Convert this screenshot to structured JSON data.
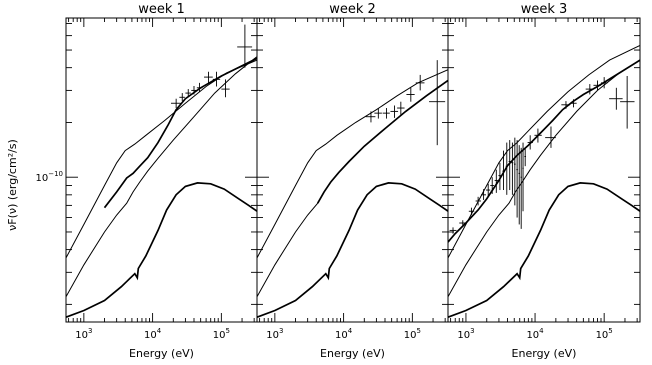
{
  "chart_data": [
    {
      "type": "scatter",
      "title": "week 1",
      "xlabel": "Energy (eV)",
      "ylabel": "νF(ν) (erg/cm²/s)",
      "x_scale": "log",
      "y_scale": "log",
      "xlim": [
        550,
        330000
      ],
      "ylim": [
        1.6e-11,
        7.5e-10
      ],
      "x_tick_labels": [
        {
          "value": 1000,
          "mant": "10",
          "exp": "3"
        },
        {
          "value": 10000,
          "mant": "10",
          "exp": "4"
        },
        {
          "value": 100000,
          "mant": "10",
          "exp": "5"
        }
      ],
      "y_tick_labels": [
        {
          "value": 1e-10,
          "mant": "10",
          "exp": "−10"
        }
      ],
      "grid": false,
      "points": [
        {
          "x": 22000,
          "y": 2.55e-10,
          "xerr": [
            18500,
            25500
          ],
          "yerr": [
            2.4e-10,
            2.7e-10
          ]
        },
        {
          "x": 27000,
          "y": 2.75e-10,
          "xerr": [
            24500,
            29500
          ],
          "yerr": [
            2.62e-10,
            2.9e-10
          ]
        },
        {
          "x": 33000,
          "y": 2.9e-10,
          "xerr": [
            30000,
            36000
          ],
          "yerr": [
            2.77e-10,
            3.05e-10
          ]
        },
        {
          "x": 40000,
          "y": 3e-10,
          "xerr": [
            36500,
            44000
          ],
          "yerr": [
            2.85e-10,
            3.17e-10
          ]
        },
        {
          "x": 48000,
          "y": 3.1e-10,
          "xerr": [
            44000,
            53000
          ],
          "yerr": [
            2.95e-10,
            3.3e-10
          ]
        },
        {
          "x": 65000,
          "y": 3.55e-10,
          "xerr": [
            56000,
            75000
          ],
          "yerr": [
            3.3e-10,
            3.8e-10
          ]
        },
        {
          "x": 85000,
          "y": 3.45e-10,
          "xerr": [
            75000,
            96000
          ],
          "yerr": [
            3.15e-10,
            3.8e-10
          ]
        },
        {
          "x": 115000,
          "y": 3.05e-10,
          "xerr": [
            100000,
            132000
          ],
          "yerr": [
            2.75e-10,
            3.45e-10
          ]
        },
        {
          "x": 220000,
          "y": 5.2e-10,
          "xerr": [
            170000,
            280000
          ],
          "yerr": [
            4e-10,
            6.9e-10
          ]
        }
      ],
      "series": [
        {
          "style": "thin",
          "x": [
            550,
            1000,
            2000,
            3000,
            4200,
            5200,
            6500,
            8500,
            12000,
            20000,
            40000,
            80000,
            160000,
            330000
          ],
          "y": [
            2.2e-11,
            3.3e-11,
            5e-11,
            6.2e-11,
            7.2e-11,
            8.3e-11,
            9.4e-11,
            1.08e-10,
            1.27e-10,
            1.6e-10,
            2.15e-10,
            2.9e-10,
            3.7e-10,
            4.6e-10
          ]
        },
        {
          "style": "thin",
          "x": [
            550,
            1000,
            2000,
            3000,
            4000,
            5500,
            8000,
            15000,
            30000,
            60000,
            120000,
            330000
          ],
          "y": [
            3.6e-11,
            5.5e-11,
            9e-11,
            1.2e-10,
            1.4e-10,
            1.52e-10,
            1.7e-10,
            2.05e-10,
            2.55e-10,
            3.15e-10,
            3.75e-10,
            4.4e-10
          ]
        },
        {
          "style": "thick",
          "x": [
            2000,
            3000,
            4200,
            5200,
            6500,
            8500,
            12000,
            17000,
            22000,
            30000,
            50000,
            100000,
            200000,
            330000
          ],
          "y": [
            6.8e-11,
            8.3e-11,
            9.9e-11,
            1.05e-10,
            1.15e-10,
            1.28e-10,
            1.55e-10,
            1.95e-10,
            2.35e-10,
            2.7e-10,
            3.1e-10,
            3.6e-10,
            4.1e-10,
            4.5e-10
          ]
        },
        {
          "style": "thick",
          "x": [
            550,
            1000,
            2000,
            3500,
            5500,
            6000,
            6200,
            8000,
            12000,
            16000,
            22000,
            30000,
            45000,
            70000,
            110000,
            180000,
            250000,
            330000
          ],
          "y": [
            1.7e-11,
            1.85e-11,
            2.1e-11,
            2.5e-11,
            2.95e-11,
            2.8e-11,
            3.15e-11,
            3.7e-11,
            5.1e-11,
            6.6e-11,
            8e-11,
            8.9e-11,
            9.3e-11,
            9.2e-11,
            8.6e-11,
            7.6e-11,
            7e-11,
            6.5e-11
          ]
        }
      ]
    },
    {
      "type": "scatter",
      "title": "week 2",
      "xlabel": "Energy (eV)",
      "ylabel": "",
      "x_scale": "log",
      "y_scale": "log",
      "xlim": [
        550,
        330000
      ],
      "ylim": [
        1.6e-11,
        7.5e-10
      ],
      "x_tick_labels": [
        {
          "value": 1000,
          "mant": "10",
          "exp": "3"
        },
        {
          "value": 10000,
          "mant": "10",
          "exp": "4"
        },
        {
          "value": 100000,
          "mant": "10",
          "exp": "5"
        }
      ],
      "y_tick_labels": [],
      "grid": false,
      "points": [
        {
          "x": 25000,
          "y": 2.15e-10,
          "xerr": [
            21000,
            29000
          ],
          "yerr": [
            2e-10,
            2.3e-10
          ]
        },
        {
          "x": 32000,
          "y": 2.25e-10,
          "xerr": [
            28000,
            36000
          ],
          "yerr": [
            2.1e-10,
            2.4e-10
          ]
        },
        {
          "x": 42000,
          "y": 2.25e-10,
          "xerr": [
            37000,
            47000
          ],
          "yerr": [
            2.1e-10,
            2.4e-10
          ]
        },
        {
          "x": 55000,
          "y": 2.3e-10,
          "xerr": [
            48000,
            62000
          ],
          "yerr": [
            2.12e-10,
            2.48e-10
          ]
        },
        {
          "x": 68000,
          "y": 2.4e-10,
          "xerr": [
            60000,
            77000
          ],
          "yerr": [
            2.2e-10,
            2.6e-10
          ]
        },
        {
          "x": 95000,
          "y": 2.85e-10,
          "xerr": [
            82000,
            108000
          ],
          "yerr": [
            2.6e-10,
            3.1e-10
          ]
        },
        {
          "x": 130000,
          "y": 3.3e-10,
          "xerr": [
            112000,
            150000
          ],
          "yerr": [
            3e-10,
            3.65e-10
          ]
        },
        {
          "x": 230000,
          "y": 2.6e-10,
          "xerr": [
            175000,
            300000
          ],
          "yerr": [
            1.5e-10,
            4.4e-10
          ]
        }
      ],
      "series": [
        {
          "style": "thin",
          "x": [
            550,
            1000,
            2000,
            3000,
            4200,
            5200,
            6500,
            8500,
            12000,
            20000,
            40000,
            80000,
            160000,
            330000
          ],
          "y": [
            2.2e-11,
            3.3e-11,
            5e-11,
            6.2e-11,
            7.2e-11,
            8.3e-11,
            9.4e-11,
            1.06e-10,
            1.22e-10,
            1.48e-10,
            1.85e-10,
            2.3e-10,
            2.8e-10,
            3.4e-10
          ]
        },
        {
          "style": "thin",
          "x": [
            550,
            1000,
            2000,
            3000,
            4000,
            5500,
            8000,
            15000,
            30000,
            60000,
            120000,
            330000
          ],
          "y": [
            3.6e-11,
            5.5e-11,
            9e-11,
            1.2e-10,
            1.4e-10,
            1.52e-10,
            1.7e-10,
            2e-10,
            2.35e-10,
            2.8e-10,
            3.3e-10,
            3.9e-10
          ]
        },
        {
          "style": "thick",
          "x": [
            4200,
            5200,
            6500,
            8500,
            12000,
            20000,
            40000,
            80000,
            160000,
            330000
          ],
          "y": [
            7.2e-11,
            8.3e-11,
            9.4e-11,
            1.06e-10,
            1.22e-10,
            1.48e-10,
            1.85e-10,
            2.3e-10,
            2.8e-10,
            3.4e-10
          ]
        },
        {
          "style": "thick",
          "x": [
            550,
            1000,
            2000,
            3500,
            5500,
            6000,
            6200,
            8000,
            12000,
            16000,
            22000,
            30000,
            45000,
            70000,
            110000,
            180000,
            250000,
            330000
          ],
          "y": [
            1.7e-11,
            1.85e-11,
            2.1e-11,
            2.5e-11,
            2.95e-11,
            2.8e-11,
            3.15e-11,
            3.7e-11,
            5.1e-11,
            6.6e-11,
            8e-11,
            8.9e-11,
            9.3e-11,
            9.2e-11,
            8.6e-11,
            7.6e-11,
            7e-11,
            6.5e-11
          ]
        }
      ]
    },
    {
      "type": "scatter",
      "title": "week 3",
      "xlabel": "Energy (eV)",
      "ylabel": "",
      "x_scale": "log",
      "y_scale": "log",
      "xlim": [
        550,
        330000
      ],
      "ylim": [
        1.6e-11,
        7.5e-10
      ],
      "x_tick_labels": [
        {
          "value": 1000,
          "mant": "10",
          "exp": "3"
        },
        {
          "value": 10000,
          "mant": "10",
          "exp": "4"
        },
        {
          "value": 100000,
          "mant": "10",
          "exp": "5"
        }
      ],
      "y_tick_labels": [],
      "grid": false,
      "points": [
        {
          "x": 650,
          "y": 5.1e-11,
          "xerr": [
            580,
            730
          ],
          "yerr": [
            4.9e-11,
            5.3e-11
          ]
        },
        {
          "x": 900,
          "y": 5.6e-11,
          "xerr": [
            800,
            1000
          ],
          "yerr": [
            5.4e-11,
            5.8e-11
          ]
        },
        {
          "x": 1200,
          "y": 6.5e-11,
          "xerr": [
            1100,
            1320
          ],
          "yerr": [
            6.2e-11,
            6.8e-11
          ]
        },
        {
          "x": 1500,
          "y": 7.4e-11,
          "xerr": [
            1380,
            1650
          ],
          "yerr": [
            7e-11,
            7.8e-11
          ]
        },
        {
          "x": 1800,
          "y": 8e-11,
          "xerr": [
            1650,
            1950
          ],
          "yerr": [
            7.5e-11,
            8.6e-11
          ]
        },
        {
          "x": 2100,
          "y": 8.5e-11,
          "xerr": [
            1950,
            2250
          ],
          "yerr": [
            7.8e-11,
            9.2e-11
          ]
        },
        {
          "x": 2400,
          "y": 9e-11,
          "xerr": [
            2250,
            2550
          ],
          "yerr": [
            8.1e-11,
            1e-10
          ]
        },
        {
          "x": 2750,
          "y": 9.6e-11,
          "xerr": [
            2600,
            2900
          ],
          "yerr": [
            8.2e-11,
            1.1e-10
          ]
        },
        {
          "x": 3100,
          "y": 1.02e-10,
          "xerr": [
            2950,
            3250
          ],
          "yerr": [
            8.5e-11,
            1.2e-10
          ]
        },
        {
          "x": 3500,
          "y": 1.08e-10,
          "xerr": [
            3350,
            3650
          ],
          "yerr": [
            8.5e-11,
            1.4e-10
          ]
        },
        {
          "x": 3900,
          "y": 1.15e-10,
          "xerr": [
            3750,
            4050
          ],
          "yerr": [
            8e-11,
            1.55e-10
          ]
        },
        {
          "x": 4300,
          "y": 1.22e-10,
          "xerr": [
            4150,
            4450
          ],
          "yerr": [
            8.5e-11,
            1.6e-10
          ]
        },
        {
          "x": 4700,
          "y": 1.2e-10,
          "xerr": [
            4550,
            4850
          ],
          "yerr": [
            8e-11,
            1.55e-10
          ]
        },
        {
          "x": 5100,
          "y": 1.18e-10,
          "xerr": [
            4950,
            5250
          ],
          "yerr": [
            7e-11,
            1.65e-10
          ]
        },
        {
          "x": 5500,
          "y": 1.1e-10,
          "xerr": [
            5350,
            5650
          ],
          "yerr": [
            6e-11,
            1.6e-10
          ]
        },
        {
          "x": 5900,
          "y": 1.05e-10,
          "xerr": [
            5750,
            6050
          ],
          "yerr": [
            5.5e-11,
            1.5e-10
          ]
        },
        {
          "x": 6300,
          "y": 1e-10,
          "xerr": [
            6150,
            6450
          ],
          "yerr": [
            5.2e-11,
            1.45e-10
          ]
        },
        {
          "x": 6700,
          "y": 1.12e-10,
          "xerr": [
            6550,
            6850
          ],
          "yerr": [
            6.5e-11,
            1.55e-10
          ]
        },
        {
          "x": 7200,
          "y": 1.3e-10,
          "xerr": [
            7000,
            7400
          ],
          "yerr": [
            1.15e-10,
            1.45e-10
          ]
        },
        {
          "x": 8500,
          "y": 1.55e-10,
          "xerr": [
            7800,
            9300
          ],
          "yerr": [
            1.42e-10,
            1.7e-10
          ]
        },
        {
          "x": 11000,
          "y": 1.7e-10,
          "xerr": [
            9800,
            12500
          ],
          "yerr": [
            1.55e-10,
            1.85e-10
          ]
        },
        {
          "x": 17000,
          "y": 1.65e-10,
          "xerr": [
            14000,
            20000
          ],
          "yerr": [
            1.45e-10,
            1.9e-10
          ]
        },
        {
          "x": 28000,
          "y": 2.5e-10,
          "xerr": [
            24000,
            32000
          ],
          "yerr": [
            2.38e-10,
            2.62e-10
          ]
        },
        {
          "x": 36000,
          "y": 2.55e-10,
          "xerr": [
            32000,
            40000
          ],
          "yerr": [
            2.42e-10,
            2.68e-10
          ]
        },
        {
          "x": 62000,
          "y": 3.05e-10,
          "xerr": [
            54000,
            70000
          ],
          "yerr": [
            2.85e-10,
            3.25e-10
          ]
        },
        {
          "x": 80000,
          "y": 3.2e-10,
          "xerr": [
            70000,
            90000
          ],
          "yerr": [
            3e-10,
            3.4e-10
          ]
        },
        {
          "x": 100000,
          "y": 3.3e-10,
          "xerr": [
            90000,
            112000
          ],
          "yerr": [
            3.08e-10,
            3.55e-10
          ]
        },
        {
          "x": 150000,
          "y": 2.7e-10,
          "xerr": [
            118000,
            185000
          ],
          "yerr": [
            2.35e-10,
            3.1e-10
          ]
        },
        {
          "x": 215000,
          "y": 2.6e-10,
          "xerr": [
            170000,
            275000
          ],
          "yerr": [
            1.85e-10,
            3.6e-10
          ]
        }
      ],
      "series": [
        {
          "style": "thin",
          "x": [
            550,
            1000,
            2000,
            3000,
            4200,
            5200,
            6500,
            8500,
            12000,
            20000,
            40000,
            80000,
            160000,
            330000
          ],
          "y": [
            2.2e-11,
            3.3e-11,
            5e-11,
            6.2e-11,
            7.2e-11,
            8.3e-11,
            9.4e-11,
            1.1e-10,
            1.32e-10,
            1.7e-10,
            2.3e-10,
            3e-10,
            3.7e-10,
            4.4e-10
          ]
        },
        {
          "style": "thin",
          "x": [
            550,
            1000,
            2000,
            3000,
            4000,
            5500,
            8000,
            15000,
            30000,
            60000,
            120000,
            330000
          ],
          "y": [
            3.6e-11,
            5.5e-11,
            9e-11,
            1.2e-10,
            1.4e-10,
            1.55e-10,
            1.8e-10,
            2.3e-10,
            2.95e-10,
            3.65e-10,
            4.4e-10,
            5.3e-10
          ]
        },
        {
          "style": "thick",
          "x": [
            550,
            700,
            1000,
            1500,
            2000,
            3000,
            4000,
            5500,
            8000,
            12000,
            18000,
            25000,
            35000,
            50000,
            80000,
            150000,
            330000
          ],
          "y": [
            4.4e-11,
            4.9e-11,
            5.6e-11,
            6.6e-11,
            7.6e-11,
            9.6e-11,
            1.16e-10,
            1.32e-10,
            1.5e-10,
            1.75e-10,
            2.05e-10,
            2.35e-10,
            2.6e-10,
            2.85e-10,
            3.15e-10,
            3.65e-10,
            4.4e-10
          ]
        },
        {
          "style": "thick",
          "x": [
            550,
            1000,
            2000,
            3500,
            5500,
            6000,
            6200,
            8000,
            12000,
            16000,
            22000,
            30000,
            45000,
            70000,
            110000,
            180000,
            250000,
            330000
          ],
          "y": [
            1.7e-11,
            1.85e-11,
            2.1e-11,
            2.5e-11,
            2.95e-11,
            2.8e-11,
            3.15e-11,
            3.7e-11,
            5.1e-11,
            6.6e-11,
            8e-11,
            8.9e-11,
            9.3e-11,
            9.2e-11,
            8.6e-11,
            7.6e-11,
            7e-11,
            6.5e-11
          ]
        }
      ]
    }
  ]
}
